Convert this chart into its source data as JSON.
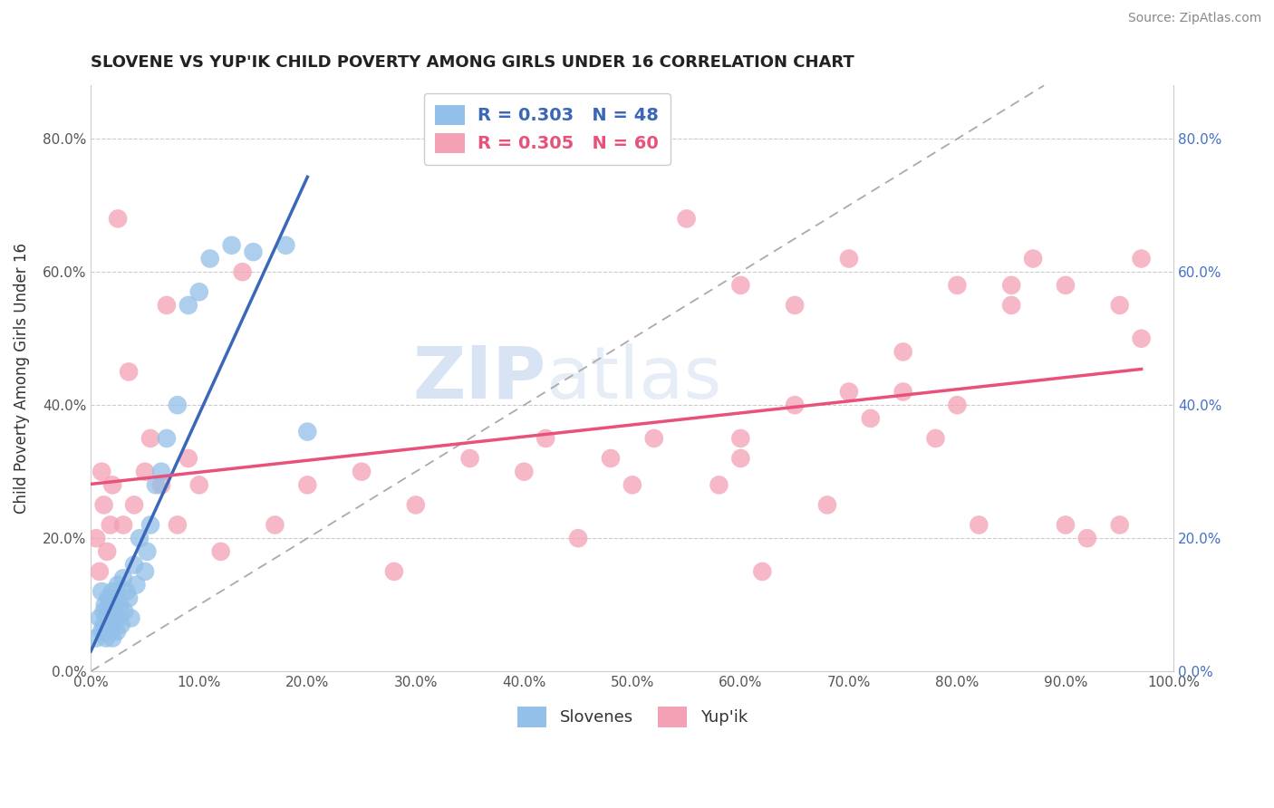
{
  "title": "SLOVENE VS YUP'IK CHILD POVERTY AMONG GIRLS UNDER 16 CORRELATION CHART",
  "source": "Source: ZipAtlas.com",
  "ylabel": "Child Poverty Among Girls Under 16",
  "xlim": [
    0.0,
    1.0
  ],
  "ylim": [
    0.0,
    0.88
  ],
  "slovene_R": 0.303,
  "slovene_N": 48,
  "yupik_R": 0.305,
  "yupik_N": 60,
  "slovene_color": "#92c0e8",
  "yupik_color": "#f4a0b5",
  "slovene_line_color": "#3a67b8",
  "yupik_line_color": "#e8527a",
  "background_color": "#ffffff",
  "grid_color": "#cccccc",
  "watermark_zip": "ZIP",
  "watermark_atlas": "atlas",
  "slovene_x": [
    0.005,
    0.008,
    0.01,
    0.01,
    0.012,
    0.012,
    0.013,
    0.014,
    0.015,
    0.015,
    0.016,
    0.016,
    0.017,
    0.018,
    0.018,
    0.019,
    0.02,
    0.02,
    0.021,
    0.022,
    0.023,
    0.024,
    0.025,
    0.025,
    0.027,
    0.028,
    0.03,
    0.031,
    0.033,
    0.035,
    0.037,
    0.04,
    0.042,
    0.045,
    0.05,
    0.052,
    0.055,
    0.06,
    0.065,
    0.07,
    0.08,
    0.09,
    0.1,
    0.11,
    0.13,
    0.15,
    0.18,
    0.2
  ],
  "slovene_y": [
    0.05,
    0.08,
    0.12,
    0.06,
    0.09,
    0.07,
    0.1,
    0.05,
    0.06,
    0.08,
    0.11,
    0.07,
    0.09,
    0.06,
    0.08,
    0.1,
    0.12,
    0.05,
    0.07,
    0.09,
    0.11,
    0.06,
    0.08,
    0.13,
    0.1,
    0.07,
    0.14,
    0.09,
    0.12,
    0.11,
    0.08,
    0.16,
    0.13,
    0.2,
    0.15,
    0.18,
    0.22,
    0.28,
    0.3,
    0.35,
    0.4,
    0.55,
    0.57,
    0.62,
    0.64,
    0.63,
    0.64,
    0.36
  ],
  "yupik_x": [
    0.005,
    0.008,
    0.01,
    0.012,
    0.015,
    0.018,
    0.02,
    0.025,
    0.03,
    0.035,
    0.04,
    0.05,
    0.055,
    0.065,
    0.07,
    0.08,
    0.09,
    0.1,
    0.12,
    0.14,
    0.17,
    0.2,
    0.25,
    0.28,
    0.3,
    0.35,
    0.4,
    0.42,
    0.45,
    0.48,
    0.5,
    0.52,
    0.55,
    0.58,
    0.6,
    0.6,
    0.62,
    0.65,
    0.68,
    0.7,
    0.72,
    0.75,
    0.78,
    0.8,
    0.82,
    0.85,
    0.87,
    0.9,
    0.92,
    0.95,
    0.97,
    0.97,
    0.6,
    0.65,
    0.7,
    0.75,
    0.8,
    0.85,
    0.9,
    0.95
  ],
  "yupik_y": [
    0.2,
    0.15,
    0.3,
    0.25,
    0.18,
    0.22,
    0.28,
    0.68,
    0.22,
    0.45,
    0.25,
    0.3,
    0.35,
    0.28,
    0.55,
    0.22,
    0.32,
    0.28,
    0.18,
    0.6,
    0.22,
    0.28,
    0.3,
    0.15,
    0.25,
    0.32,
    0.3,
    0.35,
    0.2,
    0.32,
    0.28,
    0.35,
    0.68,
    0.28,
    0.35,
    0.32,
    0.15,
    0.4,
    0.25,
    0.42,
    0.38,
    0.42,
    0.35,
    0.4,
    0.22,
    0.58,
    0.62,
    0.58,
    0.2,
    0.55,
    0.62,
    0.5,
    0.58,
    0.55,
    0.62,
    0.48,
    0.58,
    0.55,
    0.22,
    0.22
  ]
}
